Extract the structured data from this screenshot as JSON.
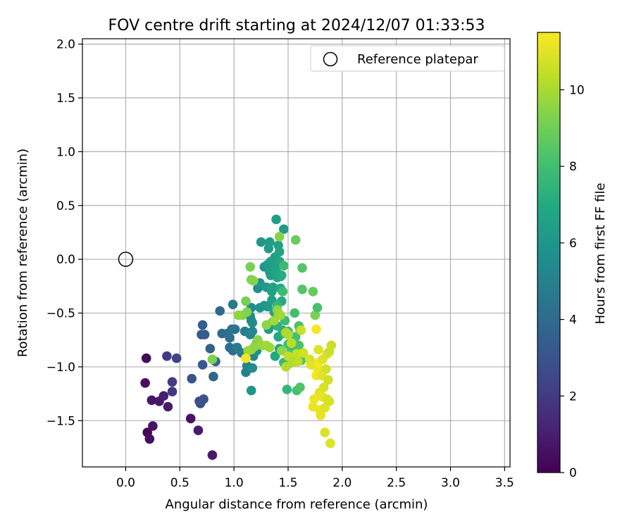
{
  "chart_data": {
    "type": "scatter",
    "title": "FOV centre drift starting at 2024/12/07 01:33:53",
    "xlabel": "Angular distance from reference (arcmin)",
    "ylabel": "Rotation from reference (arcmin)",
    "xlim": [
      -0.4,
      3.55
    ],
    "ylim": [
      -1.93,
      2.05
    ],
    "xticks": [
      "0.0",
      "0.5",
      "1.0",
      "1.5",
      "2.0",
      "2.5",
      "3.0",
      "3.5"
    ],
    "yticks": [
      "2.0",
      "1.5",
      "1.0",
      "0.5",
      "0.0",
      "−0.5",
      "−1.0",
      "−1.5"
    ],
    "grid": true,
    "legend": {
      "position": "top-right",
      "label": "Reference platepar"
    },
    "reference": {
      "x": 0.0,
      "y": 0.0
    },
    "colorbar": {
      "label": "Hours from first FF file",
      "min": 0,
      "max": 11.5,
      "ticks": [
        "0",
        "2",
        "4",
        "6",
        "8",
        "10"
      ],
      "colormap": "viridis"
    },
    "points": [
      [
        0.19,
        -0.92,
        0.3
      ],
      [
        0.18,
        -1.15,
        0.5
      ],
      [
        0.24,
        -1.31,
        0.7
      ],
      [
        0.2,
        -1.61,
        0.2
      ],
      [
        0.22,
        -1.67,
        0.4
      ],
      [
        0.25,
        -1.55,
        0.6
      ],
      [
        0.31,
        -1.32,
        0.8
      ],
      [
        0.35,
        -1.27,
        1.0
      ],
      [
        0.39,
        -1.37,
        0.9
      ],
      [
        0.38,
        -0.9,
        2.0
      ],
      [
        0.43,
        -1.23,
        1.9
      ],
      [
        0.43,
        -1.14,
        2.1
      ],
      [
        0.47,
        -0.92,
        2.3
      ],
      [
        0.6,
        -1.48,
        0.6
      ],
      [
        0.67,
        -1.59,
        0.9
      ],
      [
        0.8,
        -1.82,
        0.8
      ],
      [
        0.61,
        -1.11,
        3.0
      ],
      [
        0.68,
        -1.32,
        2.7
      ],
      [
        0.69,
        -1.34,
        2.9
      ],
      [
        0.72,
        -1.3,
        3.0
      ],
      [
        0.71,
        -0.98,
        3.3
      ],
      [
        0.7,
        -0.7,
        3.2
      ],
      [
        0.73,
        -0.7,
        3.4
      ],
      [
        0.71,
        -0.61,
        3.5
      ],
      [
        0.78,
        -0.83,
        3.6
      ],
      [
        0.81,
        -1.09,
        3.7
      ],
      [
        0.83,
        -0.95,
        3.8
      ],
      [
        0.87,
        -0.48,
        3.9
      ],
      [
        0.89,
        -0.69,
        4.0
      ],
      [
        0.94,
        -0.69,
        4.1
      ],
      [
        0.96,
        -0.82,
        4.2
      ],
      [
        0.96,
        -0.73,
        4.3
      ],
      [
        0.99,
        -0.85,
        4.2
      ],
      [
        0.98,
        -0.65,
        4.4
      ],
      [
        1.01,
        -0.65,
        4.5
      ],
      [
        0.99,
        -0.42,
        4.6
      ],
      [
        1.03,
        -0.82,
        4.7
      ],
      [
        1.07,
        -0.87,
        4.8
      ],
      [
        1.1,
        -0.67,
        4.9
      ],
      [
        1.11,
        -1.05,
        5.0
      ],
      [
        1.12,
        -0.99,
        5.1
      ],
      [
        1.15,
        -0.7,
        5.2
      ],
      [
        1.15,
        -0.53,
        5.3
      ],
      [
        1.16,
        -0.45,
        5.4
      ],
      [
        1.16,
        -0.57,
        5.5
      ],
      [
        1.17,
        -0.59,
        5.5
      ],
      [
        1.17,
        -0.67,
        5.3
      ],
      [
        1.17,
        -1.01,
        5.6
      ],
      [
        1.18,
        -0.9,
        5.4
      ],
      [
        1.16,
        -1.22,
        6.0
      ],
      [
        1.21,
        -0.78,
        5.7
      ],
      [
        1.21,
        -0.85,
        5.8
      ],
      [
        1.22,
        -0.27,
        5.6
      ],
      [
        1.24,
        -0.22,
        5.9
      ],
      [
        1.24,
        -0.45,
        6.0
      ],
      [
        1.25,
        0.16,
        6.1
      ],
      [
        1.28,
        -0.07,
        6.1
      ],
      [
        1.28,
        -0.43,
        6.0
      ],
      [
        1.3,
        -0.26,
        6.2
      ],
      [
        1.31,
        -0.44,
        6.2
      ],
      [
        1.31,
        -0.05,
        6.3
      ],
      [
        1.32,
        -0.65,
        6.4
      ],
      [
        1.32,
        0.1,
        6.3
      ],
      [
        1.33,
        0.16,
        6.4
      ],
      [
        1.33,
        -0.12,
        6.5
      ],
      [
        1.34,
        -0.02,
        6.5
      ],
      [
        1.34,
        -0.15,
        6.4
      ],
      [
        1.35,
        -0.3,
        6.6
      ],
      [
        1.35,
        -0.38,
        6.5
      ],
      [
        1.36,
        -0.58,
        6.7
      ],
      [
        1.36,
        -0.26,
        6.6
      ],
      [
        1.37,
        -0.49,
        6.7
      ],
      [
        1.38,
        0.02,
        6.5
      ],
      [
        1.38,
        -0.07,
        6.6
      ],
      [
        1.39,
        -0.11,
        6.8
      ],
      [
        1.39,
        0.37,
        6.4
      ],
      [
        1.4,
        -0.17,
        6.8
      ],
      [
        1.41,
        0.13,
        6.6
      ],
      [
        1.42,
        -0.02,
        6.8
      ],
      [
        1.42,
        0.07,
        6.7
      ],
      [
        1.43,
        -0.16,
        6.9
      ],
      [
        1.43,
        -0.27,
        7.0
      ],
      [
        1.44,
        -0.39,
        7.0
      ],
      [
        1.44,
        -0.15,
        7.1
      ],
      [
        1.45,
        -0.66,
        7.1
      ],
      [
        1.46,
        0.28,
        6.3
      ],
      [
        1.38,
        -0.9,
        6.9
      ],
      [
        1.42,
        -0.83,
        6.8
      ],
      [
        1.4,
        -0.62,
        7.4
      ],
      [
        1.41,
        -0.72,
        7.0
      ],
      [
        1.4,
        -0.43,
        7.6
      ],
      [
        1.45,
        -0.3,
        7.8
      ],
      [
        1.46,
        -0.06,
        7.8
      ],
      [
        1.49,
        -1.21,
        7.6
      ],
      [
        1.46,
        -0.96,
        7.7
      ],
      [
        1.47,
        -0.69,
        7.7
      ],
      [
        1.47,
        -0.57,
        7.8
      ],
      [
        1.5,
        -0.67,
        7.9
      ],
      [
        1.5,
        -0.79,
        7.9
      ],
      [
        1.51,
        -0.97,
        8.0
      ],
      [
        1.52,
        -0.9,
        8.0
      ],
      [
        1.53,
        -0.84,
        8.1
      ],
      [
        1.56,
        -0.5,
        8.0
      ],
      [
        1.57,
        -0.72,
        8.1
      ],
      [
        1.58,
        -1.22,
        8.1
      ],
      [
        1.6,
        -0.62,
        8.2
      ],
      [
        1.6,
        -0.8,
        8.2
      ],
      [
        1.61,
        -0.65,
        8.3
      ],
      [
        1.61,
        -1.19,
        8.3
      ],
      [
        1.62,
        -0.94,
        8.3
      ],
      [
        1.63,
        -0.28,
        8.4
      ],
      [
        1.63,
        -0.08,
        8.4
      ],
      [
        1.57,
        0.18,
        8.9
      ],
      [
        1.42,
        0.21,
        9.4
      ],
      [
        1.15,
        -0.07,
        9.2
      ],
      [
        1.16,
        -0.19,
        9.3
      ],
      [
        1.18,
        -0.2,
        9.4
      ],
      [
        1.11,
        -0.39,
        9.1
      ],
      [
        1.12,
        -0.49,
        9.3
      ],
      [
        1.08,
        -0.52,
        9.4
      ],
      [
        1.04,
        -0.52,
        9.6
      ],
      [
        1.13,
        -0.85,
        9.7
      ],
      [
        1.16,
        -0.84,
        9.8
      ],
      [
        1.19,
        -0.81,
        9.6
      ],
      [
        1.22,
        -0.75,
        9.5
      ],
      [
        1.26,
        -0.8,
        9.7
      ],
      [
        1.3,
        -0.8,
        9.9
      ],
      [
        1.33,
        -0.82,
        9.8
      ],
      [
        1.3,
        -0.61,
        9.5
      ],
      [
        1.37,
        -0.57,
        9.9
      ],
      [
        1.4,
        -0.47,
        9.5
      ],
      [
        1.41,
        -0.5,
        9.7
      ],
      [
        1.43,
        -0.52,
        9.9
      ],
      [
        1.44,
        -0.85,
        9.6
      ],
      [
        1.48,
        -0.68,
        10.0
      ],
      [
        1.48,
        -1.0,
        10.2
      ],
      [
        1.5,
        -0.7,
        10.1
      ],
      [
        1.5,
        -0.9,
        10.4
      ],
      [
        1.53,
        -0.78,
        10.3
      ],
      [
        1.54,
        -0.96,
        10.2
      ],
      [
        1.58,
        -0.88,
        10.5
      ],
      [
        1.59,
        -0.95,
        10.4
      ],
      [
        1.62,
        -0.66,
        10.6
      ],
      [
        1.64,
        -0.87,
        10.7
      ],
      [
        1.7,
        -0.93,
        10.8
      ],
      [
        1.73,
        -0.3,
        8.8
      ],
      [
        1.75,
        -0.52,
        9.2
      ],
      [
        1.77,
        -0.45,
        8.2
      ],
      [
        0.8,
        -0.93,
        9.3
      ],
      [
        1.11,
        -0.92,
        11.3
      ],
      [
        1.71,
        -0.98,
        11.0
      ],
      [
        1.73,
        -1.37,
        11.1
      ],
      [
        1.74,
        -1.3,
        11.2
      ],
      [
        1.76,
        -0.65,
        11.4
      ],
      [
        1.76,
        -1.08,
        11.3
      ],
      [
        1.77,
        -1.01,
        11.2
      ],
      [
        1.78,
        -0.96,
        11.4
      ],
      [
        1.78,
        -0.84,
        10.9
      ],
      [
        1.79,
        -1.24,
        11.0
      ],
      [
        1.79,
        -1.4,
        11.2
      ],
      [
        1.8,
        -1.45,
        11.1
      ],
      [
        1.81,
        -1.08,
        11.0
      ],
      [
        1.82,
        -0.93,
        10.9
      ],
      [
        1.82,
        -1.28,
        11.1
      ],
      [
        1.83,
        -1.19,
        10.8
      ],
      [
        1.84,
        -1.61,
        10.9
      ],
      [
        1.84,
        -1.38,
        11.0
      ],
      [
        1.85,
        -1.02,
        10.7
      ],
      [
        1.86,
        -1.3,
        10.9
      ],
      [
        1.86,
        -0.88,
        10.8
      ],
      [
        1.87,
        -1.12,
        10.7
      ],
      [
        1.88,
        -1.32,
        10.8
      ],
      [
        1.88,
        -0.86,
        10.6
      ],
      [
        1.89,
        -1.71,
        10.9
      ],
      [
        1.9,
        -0.8,
        10.6
      ]
    ]
  }
}
